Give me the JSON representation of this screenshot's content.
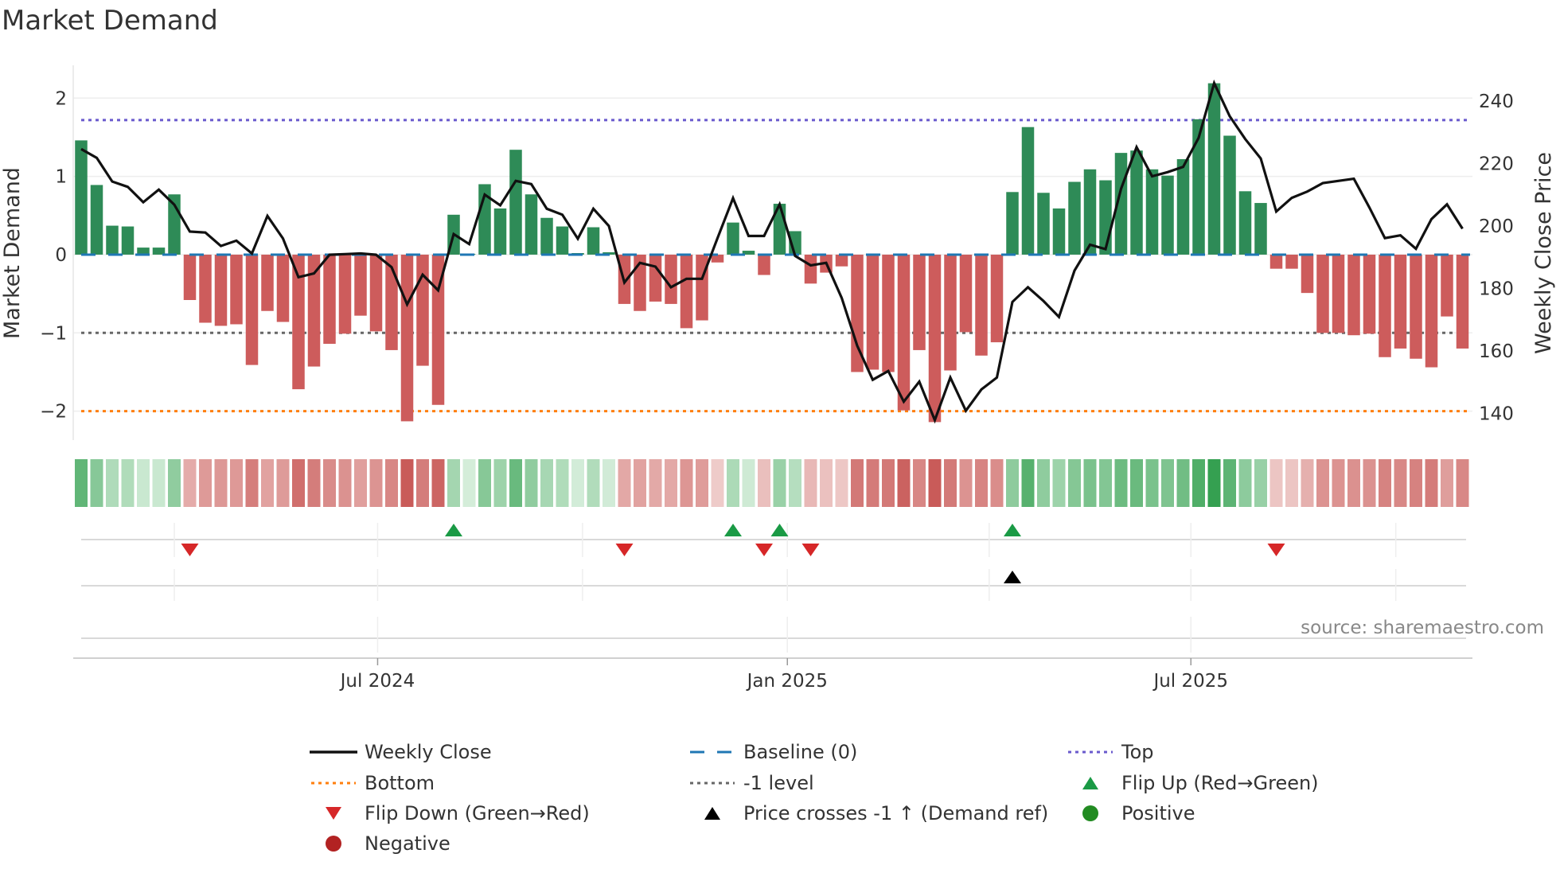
{
  "title": "Market Demand",
  "source": "source: sharemaestro.com",
  "colors": {
    "positive_bar": "#2e8b57",
    "negative_bar": "#cd5c5c",
    "weekly_close": "#111111",
    "baseline": "#1f77b4",
    "top": "#6a5acd",
    "bottom": "#ff7f0e",
    "minus1": "#666666",
    "flip_up": "#1a9a45",
    "flip_down": "#d62728",
    "price_cross": "#000000",
    "positive_dot": "#228b22",
    "negative_dot": "#b22222"
  },
  "chart_data": {
    "type": "bar+line",
    "title": "Market Demand",
    "xlabel": "",
    "ylabel": "Market Demand",
    "y2label": "Weekly Close Price",
    "ylim": [
      -2.37,
      2.42
    ],
    "y2lim": [
      131.5,
      251.4
    ],
    "yticks": [
      "2",
      "1",
      "0",
      "−1",
      "−2"
    ],
    "ytick_values": [
      2,
      1,
      0,
      -1,
      -2
    ],
    "y2ticks": [
      "240",
      "220",
      "200",
      "180",
      "160",
      "140"
    ],
    "y2tick_values": [
      240,
      220,
      200,
      180,
      160,
      140
    ],
    "x_unit": "week index",
    "xticks": [
      {
        "label": "Jul 2024",
        "x": 19.1
      },
      {
        "label": "Jan 2025",
        "x": 45.5
      },
      {
        "label": "Jul 2025",
        "x": 71.5
      }
    ],
    "minor_xticks": [
      6.0,
      32.3,
      58.5,
      84.7
    ],
    "levels": {
      "top": 1.72,
      "baseline": 0,
      "minus1": -1,
      "bottom": -2
    },
    "demand": [
      1.46,
      0.89,
      0.37,
      0.36,
      0.09,
      0.09,
      0.77,
      -0.58,
      -0.87,
      -0.91,
      -0.89,
      -1.41,
      -0.72,
      -0.86,
      -1.72,
      -1.43,
      -1.14,
      -1.01,
      -0.78,
      -0.98,
      -1.22,
      -2.13,
      -1.42,
      -1.92,
      0.51,
      0.01,
      0.9,
      0.59,
      1.34,
      0.77,
      0.47,
      0.36,
      0.02,
      0.35,
      0.03,
      -0.63,
      -0.72,
      -0.6,
      -0.63,
      -0.94,
      -0.84,
      -0.1,
      0.41,
      0.05,
      -0.26,
      0.65,
      0.3,
      -0.37,
      -0.23,
      -0.15,
      -1.5,
      -1.47,
      -1.5,
      -1.99,
      -1.22,
      -2.14,
      -1.48,
      -0.99,
      -1.29,
      -1.12,
      0.8,
      1.63,
      0.79,
      0.59,
      0.93,
      1.09,
      0.95,
      1.3,
      1.33,
      1.09,
      1.01,
      1.22,
      1.73,
      2.19,
      1.52,
      0.81,
      0.66,
      -0.18,
      -0.18,
      -0.49,
      -1.0,
      -1.0,
      -1.03,
      -1.01,
      -1.31,
      -1.2,
      -1.33,
      -1.44,
      -0.79,
      -1.2
    ],
    "weekly_close": [
      224.6,
      221.8,
      214.2,
      212.5,
      207.6,
      211.6,
      206.8,
      198.2,
      197.9,
      193.6,
      195.3,
      191.2,
      203.2,
      196.0,
      183.6,
      184.8,
      190.8,
      191.0,
      191.2,
      190.8,
      186.8,
      174.9,
      184.4,
      179.4,
      197.4,
      194.2,
      210.0,
      206.6,
      214.4,
      213.4,
      205.5,
      203.6,
      195.9,
      205.5,
      200.0,
      181.9,
      188.2,
      187.0,
      180.4,
      183.1,
      183.1,
      196.1,
      208.9,
      196.8,
      196.8,
      206.9,
      190.4,
      187.4,
      188.2,
      177.0,
      161.7,
      150.8,
      153.6,
      143.8,
      150.2,
      137.9,
      151.5,
      140.9,
      147.7,
      151.5,
      175.7,
      180.4,
      176.0,
      170.9,
      185.7,
      194.0,
      192.6,
      211.9,
      225.2,
      215.9,
      217.2,
      218.9,
      228.2,
      245.7,
      235.1,
      227.8,
      221.6,
      204.6,
      209.0,
      211.0,
      213.7,
      214.4,
      215.1,
      205.9,
      196.1,
      197.0,
      192.7,
      202.2,
      206.9,
      199.1
    ],
    "flip_up": [
      24,
      42,
      45,
      60
    ],
    "flip_down": [
      7,
      35,
      44,
      47,
      77
    ],
    "price_crosses": [
      60
    ],
    "legend": [
      {
        "label": "Weekly Close",
        "symbol": "solid-line"
      },
      {
        "label": "Baseline (0)",
        "symbol": "dash-line"
      },
      {
        "label": "Top",
        "symbol": "dot-line"
      },
      {
        "label": "Bottom",
        "symbol": "dot-line"
      },
      {
        "label": "-1 level",
        "symbol": "dot-line"
      },
      {
        "label": "Flip Up (Red→Green)",
        "symbol": "triangle-up"
      },
      {
        "label": "Flip Down (Green→Red)",
        "symbol": "triangle-down"
      },
      {
        "label": "Price crosses -1 ↑ (Demand ref)",
        "symbol": "triangle-up"
      },
      {
        "label": "Positive",
        "symbol": "circle"
      },
      {
        "label": "Negative",
        "symbol": "circle"
      }
    ],
    "legend_placement": "bottom"
  }
}
